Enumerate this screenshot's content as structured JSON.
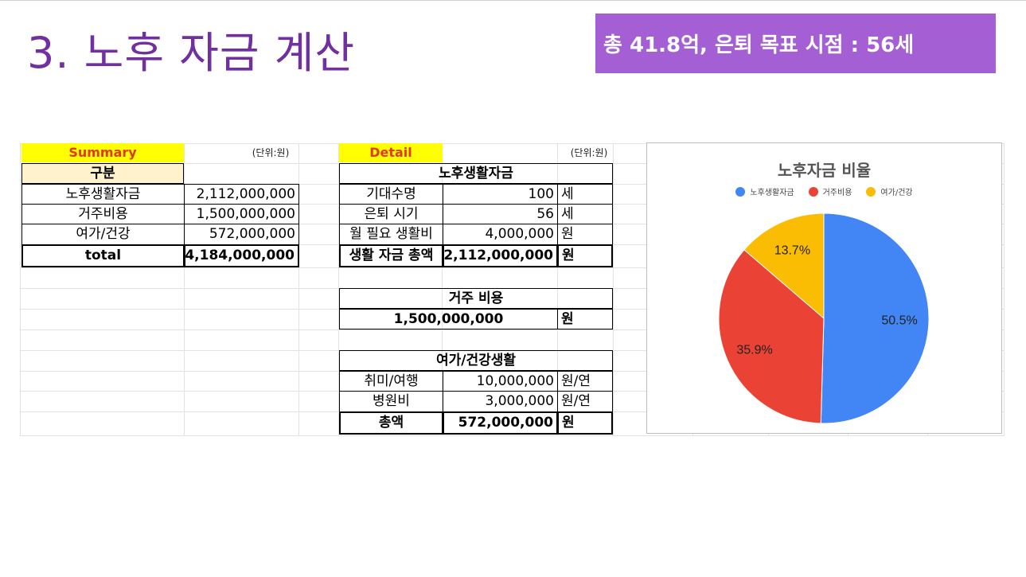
{
  "slide": {
    "title": "3. 노후 자금 계산",
    "banner": "총 41.8억, 은퇴 목표 시점  : 56세"
  },
  "summary": {
    "header": "Summary",
    "unit": "(단위:원)",
    "category_header": "구분",
    "rows": [
      {
        "label": "노후생활자금",
        "value": "2,112,000,000"
      },
      {
        "label": "거주비용",
        "value": "1,500,000,000"
      },
      {
        "label": "여가/건강",
        "value": "572,000,000"
      },
      {
        "label": "total",
        "value": "4,184,000,000"
      }
    ]
  },
  "detail": {
    "header": "Detail",
    "unit": "(단위:원)",
    "living": {
      "title": "노후생활자금",
      "rows": [
        {
          "label": "기대수명",
          "value": "100",
          "unit": "세"
        },
        {
          "label": "은퇴 시기",
          "value": "56",
          "unit": "세"
        },
        {
          "label": "월 필요 생활비",
          "value": "4,000,000",
          "unit": "원"
        },
        {
          "label": "생활 자금 총액",
          "value": "2,112,000,000",
          "unit": "원"
        }
      ]
    },
    "housing": {
      "title": "거주 비용",
      "value": "1,500,000,000",
      "unit": "원"
    },
    "leisure": {
      "title": "여가/건강생활",
      "rows": [
        {
          "label": "취미/여행",
          "value": "10,000,000",
          "unit": "원/연"
        },
        {
          "label": "병원비",
          "value": "3,000,000",
          "unit": "원/연"
        },
        {
          "label": "총액",
          "value": "572,000,000",
          "unit": "원"
        }
      ]
    }
  },
  "chart_data": {
    "type": "pie",
    "title": "노후자금 비율",
    "legend_position": "top",
    "categories": [
      "노후생활자금",
      "거주비용",
      "여가/건강"
    ],
    "values": [
      50.5,
      35.9,
      13.7
    ],
    "labels": [
      "50.5%",
      "35.9%",
      "13.7%"
    ],
    "colors": [
      "#4285f4",
      "#ea4335",
      "#fbbc04"
    ]
  }
}
